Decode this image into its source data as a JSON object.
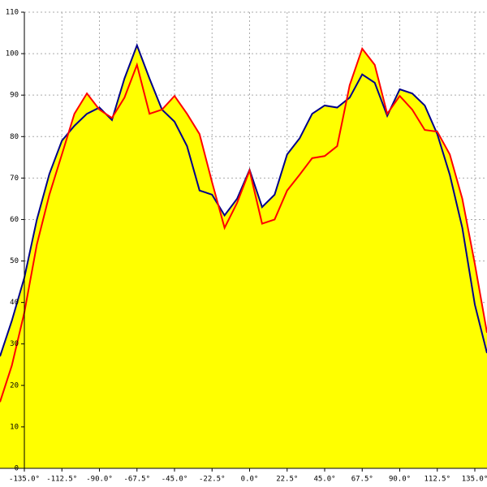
{
  "chart_data": {
    "type": "line",
    "x": [
      -149.6,
      -142.5,
      -135,
      -127.5,
      -120,
      -112.5,
      -105,
      -97.5,
      -90,
      -82.5,
      -75,
      -67.5,
      -60,
      -52.5,
      -45,
      -37.5,
      -30,
      -22.5,
      -15,
      -7.5,
      0,
      7.5,
      15,
      22.5,
      30,
      37.5,
      45,
      52.5,
      60,
      67.5,
      75,
      82.5,
      90,
      97.5,
      105,
      112.5,
      120,
      127.5,
      135,
      142.3
    ],
    "series": [
      {
        "color": "#00008b",
        "values": [
          27,
          35.6,
          46,
          60,
          71,
          79,
          82.6,
          85.5,
          87,
          84,
          94,
          102,
          94,
          86.5,
          83.6,
          77.7,
          67,
          66,
          61,
          65,
          72,
          63,
          66,
          75.7,
          79.6,
          85.5,
          87.5,
          87,
          89.4,
          95,
          93,
          85,
          91.4,
          90.4,
          87.5,
          80.6,
          70.8,
          58,
          39.5,
          27.8
        ]
      },
      {
        "color": "#ff0000",
        "values": [
          16,
          24.8,
          37.6,
          54,
          66,
          75.7,
          85.5,
          90.4,
          86.5,
          84.5,
          89.4,
          97.3,
          85.5,
          86.5,
          89.8,
          85.5,
          80.6,
          69,
          58,
          64,
          71.8,
          59,
          60,
          67,
          70.8,
          74.8,
          75.3,
          77.7,
          92.4,
          101.2,
          97.3,
          85.5,
          89.8,
          86.5,
          81.6,
          81.2,
          75.7,
          65,
          49.3,
          32.7
        ]
      }
    ],
    "fill": "#ffff00",
    "xlim": [
      -149.6,
      142.3
    ],
    "ylim": [
      0,
      110
    ],
    "xticks": [
      {
        "value": -135,
        "label": "-135.0°"
      },
      {
        "value": -112.5,
        "label": "-112.5°"
      },
      {
        "value": -90,
        "label": "-90.0°"
      },
      {
        "value": -67.5,
        "label": "-67.5°"
      },
      {
        "value": -45,
        "label": "-45.0°"
      },
      {
        "value": -22.5,
        "label": "-22.5°"
      },
      {
        "value": 0,
        "label": "0.0°"
      },
      {
        "value": 22.5,
        "label": "22.5°"
      },
      {
        "value": 45,
        "label": "45.0°"
      },
      {
        "value": 67.5,
        "label": "67.5°"
      },
      {
        "value": 90,
        "label": "90.0°"
      },
      {
        "value": 112.5,
        "label": "112.5°"
      },
      {
        "value": 135,
        "label": "135.0°"
      }
    ],
    "yticks": [
      0,
      10,
      20,
      30,
      40,
      50,
      60,
      70,
      80,
      90,
      100,
      110
    ],
    "grid": true
  }
}
